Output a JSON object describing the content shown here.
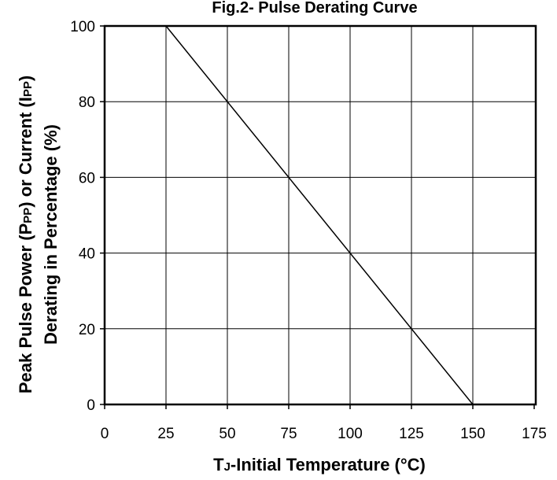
{
  "chart_data": {
    "type": "line",
    "title": "Fig.2- Pulse Derating Curve",
    "xlabel": {
      "main": "T",
      "sub": "J",
      "rest": "-Initial Temperature (°C)"
    },
    "ylabel": {
      "line1": "Peak Pulse Power (P",
      "line1_sub": "PP",
      "line1_mid": ") or Current (I",
      "line1_sub2": "PP",
      "line1_end": ")",
      "line2": "Derating in Percentage (%)"
    },
    "xlim": [
      0,
      175
    ],
    "ylim": [
      0,
      100
    ],
    "x_ticks": [
      0,
      25,
      50,
      75,
      100,
      125,
      150,
      175
    ],
    "x_tick_labels": [
      "0",
      "25",
      "50",
      "75",
      "100",
      "125",
      "150",
      "175"
    ],
    "y_ticks": [
      0,
      20,
      40,
      60,
      80,
      100
    ],
    "y_tick_labels": [
      "0",
      "20",
      "40",
      "60",
      "80",
      "100"
    ],
    "grid": true,
    "series": [
      {
        "x": [
          25,
          150
        ],
        "y": [
          100,
          0
        ]
      }
    ]
  }
}
